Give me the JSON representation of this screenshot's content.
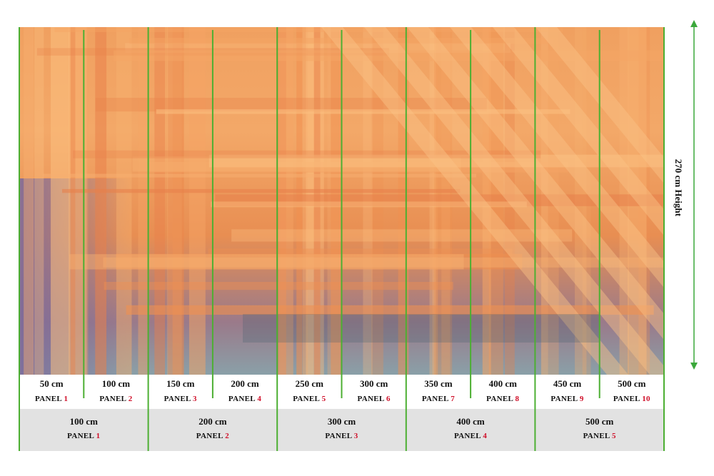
{
  "height_label": "270 cm Height",
  "small_panels": [
    {
      "width": "50 cm",
      "label": "PANEL",
      "number": "1"
    },
    {
      "width": "100 cm",
      "label": "PANEL",
      "number": "2"
    },
    {
      "width": "150 cm",
      "label": "PANEL",
      "number": "3"
    },
    {
      "width": "200 cm",
      "label": "PANEL",
      "number": "4"
    },
    {
      "width": "250 cm",
      "label": "PANEL",
      "number": "5"
    },
    {
      "width": "300 cm",
      "label": "PANEL",
      "number": "6"
    },
    {
      "width": "350 cm",
      "label": "PANEL",
      "number": "7"
    },
    {
      "width": "400 cm",
      "label": "PANEL",
      "number": "8"
    },
    {
      "width": "450 cm",
      "label": "PANEL",
      "number": "9"
    },
    {
      "width": "500 cm",
      "label": "PANEL",
      "number": "10"
    }
  ],
  "large_panels": [
    {
      "width": "100 cm",
      "label": "PANEL",
      "number": "1"
    },
    {
      "width": "200 cm",
      "label": "PANEL",
      "number": "2"
    },
    {
      "width": "300 cm",
      "label": "PANEL",
      "number": "3"
    },
    {
      "width": "400 cm",
      "label": "PANEL",
      "number": "4"
    },
    {
      "width": "500 cm",
      "label": "PANEL",
      "number": "5"
    }
  ]
}
